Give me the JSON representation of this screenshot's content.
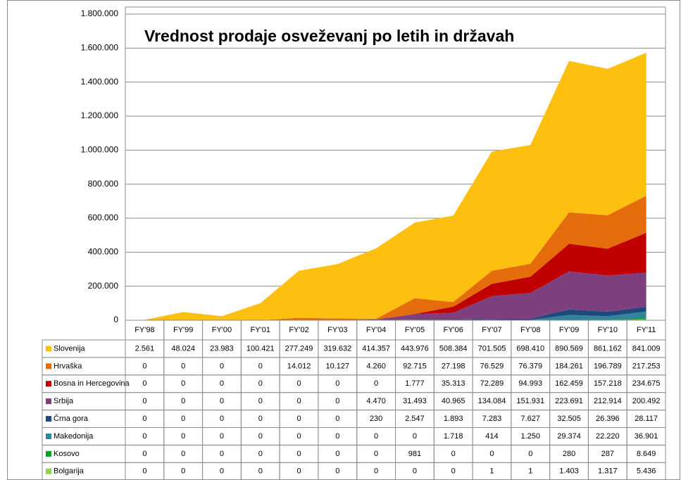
{
  "chart_data": {
    "type": "stacked_area",
    "title": "Vrednost prodaje osveževanj po letih in državah",
    "categories": [
      "FY'98",
      "FY'99",
      "FY'00",
      "FY'01",
      "FY'02",
      "FY'03",
      "FY'04",
      "FY'05",
      "FY'06",
      "FY'07",
      "FY'08",
      "FY'09",
      "FY'10",
      "FY'11"
    ],
    "ylim": [
      0,
      1800000
    ],
    "yticks": [
      0,
      {
        "value": 200000,
        "label": "200.000"
      },
      {
        "value": 400000,
        "label": "400.000"
      },
      {
        "value": 600000,
        "label": "600.000"
      },
      {
        "value": 800000,
        "label": "800.000"
      },
      {
        "value": 1000000,
        "label": "1.000.000"
      },
      {
        "value": 1200000,
        "label": "1.200.000"
      },
      {
        "value": 1400000,
        "label": "1.400.000"
      },
      {
        "value": 1600000,
        "label": "1.600.000"
      },
      {
        "value": 1800000,
        "label": "1.800.000"
      }
    ],
    "grid": true,
    "series": [
      {
        "name": "Slovenija",
        "color": "#fdbf10",
        "values": [
          2561,
          48024,
          23983,
          100421,
          277249,
          319632,
          414357,
          443976,
          508384,
          701505,
          698410,
          890569,
          861162,
          841009
        ],
        "value_labels": [
          "2.561",
          "48.024",
          "23.983",
          "100.421",
          "277.249",
          "319.632",
          "414.357",
          "443.976",
          "508.384",
          "701.505",
          "698.410",
          "890.569",
          "861.162",
          "841.009"
        ]
      },
      {
        "name": "Hrvaška",
        "color": "#e46c0a",
        "values": [
          0,
          0,
          0,
          0,
          14012,
          10127,
          4260,
          92715,
          27198,
          76529,
          76379,
          184261,
          196789,
          217253
        ],
        "value_labels": [
          "0",
          "0",
          "0",
          "0",
          "14.012",
          "10.127",
          "4.260",
          "92.715",
          "27.198",
          "76.529",
          "76.379",
          "184.261",
          "196.789",
          "217.253"
        ]
      },
      {
        "name": "Bosna in Hercegovina",
        "color": "#c00000",
        "values": [
          0,
          0,
          0,
          0,
          0,
          0,
          0,
          1777,
          35313,
          72289,
          94993,
          162459,
          157218,
          234675
        ],
        "value_labels": [
          "0",
          "0",
          "0",
          "0",
          "0",
          "0",
          "0",
          "1.777",
          "35.313",
          "72.289",
          "94.993",
          "162.459",
          "157.218",
          "234.675"
        ]
      },
      {
        "name": "Srbija",
        "color": "#7d3f7d",
        "values": [
          0,
          0,
          0,
          0,
          0,
          0,
          4470,
          31493,
          40965,
          134084,
          151931,
          223691,
          212914,
          200492
        ],
        "value_labels": [
          "0",
          "0",
          "0",
          "0",
          "0",
          "0",
          "4.470",
          "31.493",
          "40.965",
          "134.084",
          "151.931",
          "223.691",
          "212.914",
          "200.492"
        ]
      },
      {
        "name": "Črna gora",
        "color": "#1f497d",
        "values": [
          0,
          0,
          0,
          0,
          0,
          0,
          230,
          2547,
          1893,
          7283,
          7627,
          32505,
          26396,
          28117
        ],
        "value_labels": [
          "0",
          "0",
          "0",
          "0",
          "0",
          "0",
          "230",
          "2.547",
          "1.893",
          "7.283",
          "7.627",
          "32.505",
          "26.396",
          "28.117"
        ]
      },
      {
        "name": "Makedonija",
        "color": "#31849b",
        "values": [
          0,
          0,
          0,
          0,
          0,
          0,
          0,
          0,
          1718,
          414,
          1250,
          29374,
          22220,
          36901
        ],
        "value_labels": [
          "0",
          "0",
          "0",
          "0",
          "0",
          "0",
          "0",
          "0",
          "1.718",
          "414",
          "1.250",
          "29.374",
          "22.220",
          "36.901"
        ]
      },
      {
        "name": "Kosovo",
        "color": "#00a32a",
        "values": [
          0,
          0,
          0,
          0,
          0,
          0,
          0,
          981,
          0,
          0,
          0,
          280,
          287,
          8649
        ],
        "value_labels": [
          "0",
          "0",
          "0",
          "0",
          "0",
          "0",
          "0",
          "981",
          "0",
          "0",
          "0",
          "280",
          "287",
          "8.649"
        ]
      },
      {
        "name": "Bolgarija",
        "color": "#92d050",
        "values": [
          0,
          0,
          0,
          0,
          0,
          0,
          0,
          0,
          0,
          1,
          1,
          1403,
          1317,
          5436
        ],
        "value_labels": [
          "0",
          "0",
          "0",
          "0",
          "0",
          "0",
          "0",
          "0",
          "0",
          "1",
          "1",
          "1.403",
          "1.317",
          "5.436"
        ]
      }
    ]
  }
}
